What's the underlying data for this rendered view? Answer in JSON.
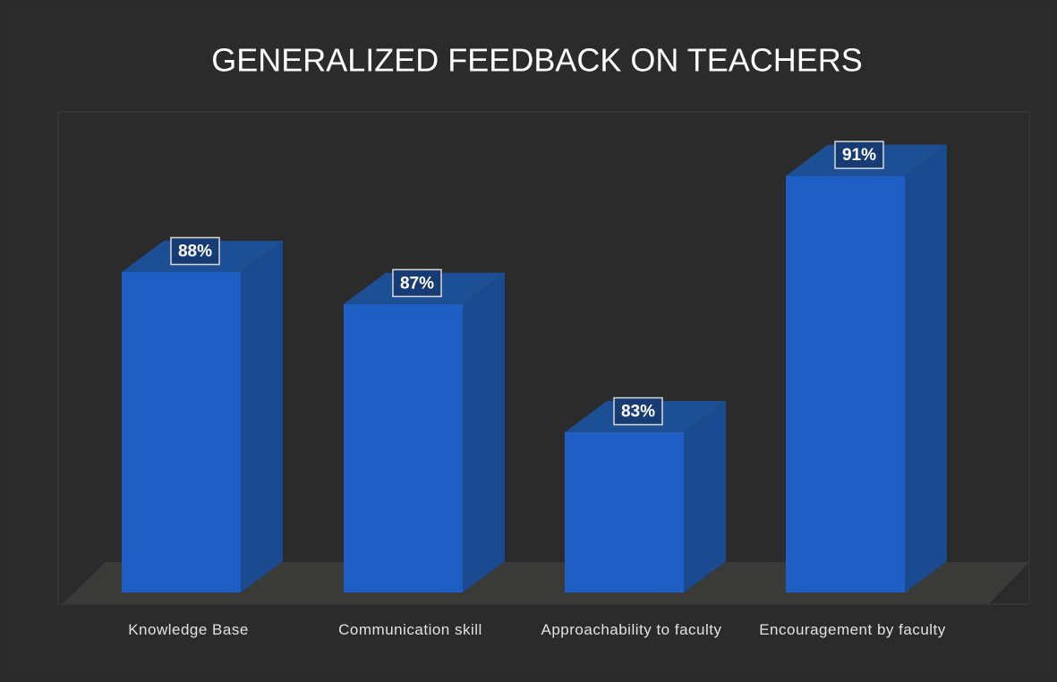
{
  "chart_data": {
    "type": "bar",
    "title": "GENERALIZED FEEDBACK ON TEACHERS",
    "categories": [
      "Knowledge Base",
      "Communication skill",
      "Approachability to faculty",
      "Encouragement by faculty"
    ],
    "values": [
      88,
      87,
      83,
      91
    ],
    "value_labels": [
      "88%",
      "87%",
      "83%",
      "91%"
    ],
    "color": "#1f5fc4",
    "ylim": [
      78,
      93
    ]
  }
}
